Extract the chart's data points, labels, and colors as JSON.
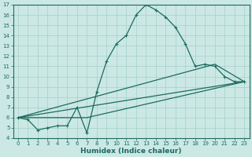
{
  "xlabel": "Humidex (Indice chaleur)",
  "ylabel": "",
  "bg_color": "#cce8e4",
  "line_color": "#1a6b60",
  "grid_color": "#a8d4cc",
  "xlim": [
    -0.5,
    23.5
  ],
  "ylim": [
    4,
    17
  ],
  "xticks": [
    0,
    1,
    2,
    3,
    4,
    5,
    6,
    7,
    8,
    9,
    10,
    11,
    12,
    13,
    14,
    15,
    16,
    17,
    18,
    19,
    20,
    21,
    22,
    23
  ],
  "yticks": [
    4,
    5,
    6,
    7,
    8,
    9,
    10,
    11,
    12,
    13,
    14,
    15,
    16,
    17
  ],
  "line1_x": [
    0,
    1,
    2,
    3,
    4,
    5,
    6,
    7,
    8,
    9,
    10,
    11,
    12,
    13,
    14,
    15,
    16,
    17,
    18,
    19,
    20,
    21,
    22,
    23
  ],
  "line1_y": [
    6.0,
    5.8,
    4.8,
    5.0,
    5.2,
    5.2,
    7.0,
    4.5,
    8.5,
    11.5,
    13.2,
    14.0,
    16.0,
    17.0,
    16.5,
    15.8,
    14.8,
    13.2,
    11.0,
    11.2,
    11.0,
    10.0,
    9.5,
    9.5
  ],
  "line2_x": [
    0,
    23
  ],
  "line2_y": [
    6.0,
    9.5
  ],
  "line3_x": [
    0,
    7,
    23
  ],
  "line3_y": [
    6.0,
    6.0,
    9.5
  ],
  "line4_x": [
    0,
    20,
    23
  ],
  "line4_y": [
    6.0,
    11.2,
    9.5
  ],
  "marker": "+"
}
